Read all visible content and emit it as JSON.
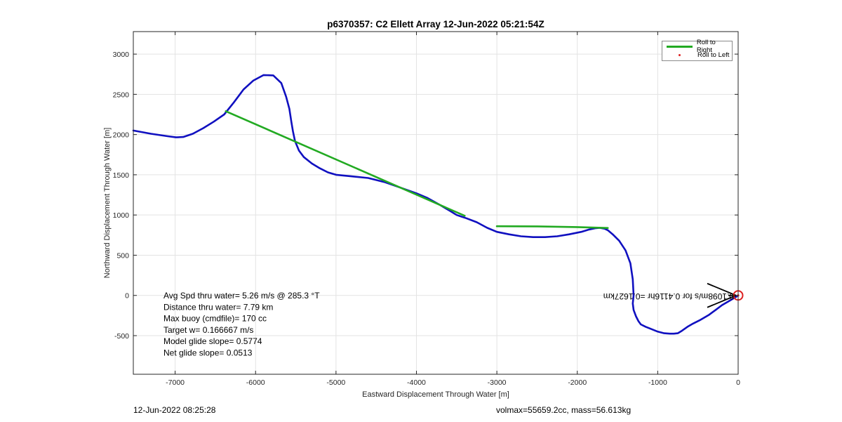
{
  "chart_data": {
    "type": "line",
    "title": "p6370357: C2 Ellett Array 12-Jun-2022 05:21:54Z",
    "xlabel": "Eastward Displacement Through Water [m]",
    "ylabel": "Northward Displacement Through Water [m]",
    "xlim": [
      -7520,
      0
    ],
    "ylim": [
      -980,
      3280
    ],
    "xticks": [
      -7000,
      -6000,
      -5000,
      -4000,
      -3000,
      -2000,
      -1000,
      0
    ],
    "yticks": [
      -500,
      0,
      500,
      1000,
      1500,
      2000,
      2500,
      3000
    ],
    "grid": true,
    "legend_position": "top-right",
    "legend": [
      {
        "label": "Roll to Right",
        "color": "#22aa22",
        "style": "line"
      },
      {
        "label": "Roll to Left",
        "color": "#dd2222",
        "style": "dot"
      }
    ],
    "series": [
      {
        "role": "track",
        "color": "#1010c0",
        "x": [
          -7520,
          -7300,
          -7100,
          -6990,
          -6900,
          -6780,
          -6650,
          -6520,
          -6390,
          -6270,
          -6150,
          -6030,
          -5900,
          -5780,
          -5680,
          -5620,
          -5580,
          -5555,
          -5535,
          -5510,
          -5460,
          -5400,
          -5300,
          -5200,
          -5100,
          -5000,
          -4800,
          -4600,
          -4400,
          -4200,
          -4000,
          -3860,
          -3700,
          -3580,
          -3500,
          -3440,
          -3380,
          -3250,
          -3120,
          -3000,
          -2850,
          -2700,
          -2550,
          -2400,
          -2250,
          -2100,
          -1950,
          -1850,
          -1780,
          -1720,
          -1660,
          -1620,
          -1560,
          -1480,
          -1400,
          -1340,
          -1310,
          -1300,
          -1310,
          -1300,
          -1270,
          -1240,
          -1210,
          -1150,
          -1100,
          -1000,
          -920,
          -850,
          -800,
          -750,
          -700,
          -630,
          -560,
          -480,
          -360,
          -280,
          -200,
          -130,
          -80,
          -30,
          0
        ],
        "y": [
          2050,
          2010,
          1980,
          1965,
          1970,
          2010,
          2080,
          2160,
          2250,
          2400,
          2560,
          2670,
          2740,
          2735,
          2640,
          2470,
          2320,
          2160,
          2040,
          1920,
          1800,
          1720,
          1640,
          1580,
          1530,
          1500,
          1480,
          1460,
          1410,
          1340,
          1270,
          1210,
          1120,
          1050,
          1000,
          980,
          960,
          910,
          840,
          790,
          760,
          735,
          725,
          725,
          735,
          760,
          790,
          820,
          835,
          840,
          830,
          810,
          760,
          680,
          560,
          400,
          200,
          0,
          -100,
          -180,
          -260,
          -320,
          -360,
          -390,
          -410,
          -450,
          -470,
          -475,
          -475,
          -470,
          -440,
          -390,
          -350,
          -310,
          -240,
          -180,
          -120,
          -80,
          -50,
          -20,
          0
        ]
      },
      {
        "name": "Roll to Right",
        "color": "#22aa22",
        "segments": [
          {
            "x": [
              -6370,
              -3400
            ],
            "y": [
              2290,
              990
            ]
          },
          {
            "x": [
              -3000,
              -2500,
              -2000,
              -1620
            ],
            "y": [
              860,
              858,
              850,
              838
            ]
          }
        ]
      },
      {
        "name": "Roll to Left",
        "color": "#dd2222",
        "points": [
          {
            "x": 0,
            "y": 0
          }
        ]
      }
    ],
    "annotations": {
      "current_text_mirrored": "0.1098m/s for 0.4116hr =0.1627km",
      "stats": [
        "Avg Spd thru water=  5.26 m/s @ 285.3 °T",
        "Distance thru water=  7.79 km",
        "Max buoy (cmdfile)= 170 cc",
        "Target w= 0.166667 m/s",
        "Model glide slope= 0.5774",
        "Net glide slope= 0.0513"
      ]
    }
  },
  "footer": {
    "timestamp": "12-Jun-2022 08:25:28",
    "volmass": "volmax=55659.2cc, mass=56.613kg"
  }
}
